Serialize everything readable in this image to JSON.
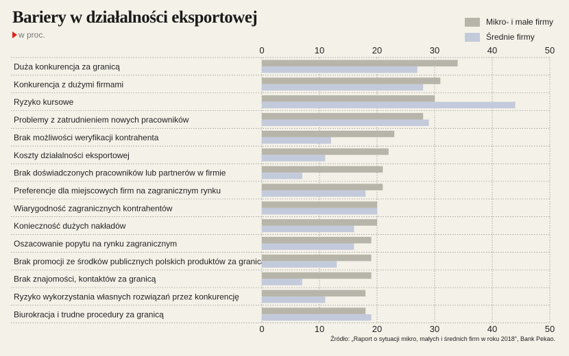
{
  "chart_data": {
    "type": "bar",
    "orientation": "horizontal",
    "title": "Bariery w działalności eksportowej",
    "subtitle": "w proc.",
    "categories": [
      "Duża konkurencja za granicą",
      "Konkurencja z dużymi firmami",
      "Ryzyko kursowe",
      "Problemy z zatrudnieniem nowych pracowników",
      "Brak możliwości weryfikacji kontrahenta",
      "Koszty działalności eksportowej",
      "Brak doświadczonych pracowników lub partnerów w firmie",
      "Preferencje dla miejscowych firm na zagranicznym rynku",
      "Wiarygodność zagranicznych kontrahentów",
      "Konieczność dużych nakładów",
      "Oszacowanie popytu na rynku zagranicznym",
      "Brak promocji ze środków publicznych polskich produktów za granicą",
      "Brak znajomości, kontaktów za granicą",
      "Ryzyko wykorzystania własnych rozwiązań przez konkurencję",
      "Biurokracja i trudne procedury za granicą"
    ],
    "series": [
      {
        "name": "Mikro- i małe firmy",
        "color": "#b7b5a9",
        "values": [
          34,
          31,
          30,
          28,
          23,
          22,
          21,
          21,
          20,
          20,
          19,
          19,
          19,
          18,
          18
        ]
      },
      {
        "name": "Średnie firmy",
        "color": "#c3cadb",
        "values": [
          27,
          28,
          44,
          29,
          12,
          11,
          7,
          18,
          20,
          16,
          16,
          13,
          7,
          11,
          19
        ]
      }
    ],
    "xlim": [
      0,
      50
    ],
    "xticks": [
      0,
      10,
      20,
      30,
      40,
      50
    ],
    "xtick_labels": [
      "0",
      "10",
      "20",
      "30",
      "40",
      "50"
    ],
    "grid": "dotted horizontal separators between categories",
    "legend": "top-right"
  },
  "source": "Źródło: „Raport o sytuacji mikro, małych i średnich firm w roku 2018\", Bank Pekao."
}
